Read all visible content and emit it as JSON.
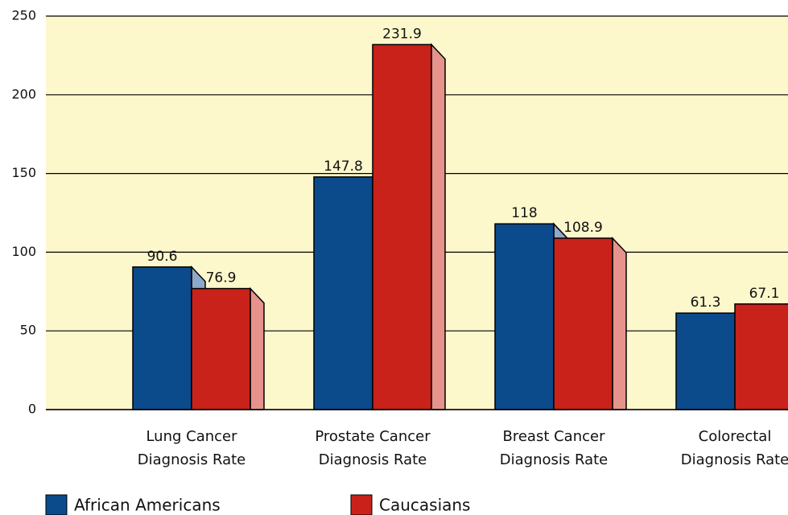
{
  "chart_data": {
    "type": "bar",
    "categories": [
      [
        "Lung Cancer",
        "Diagnosis Rate"
      ],
      [
        "Prostate Cancer",
        "Diagnosis Rate"
      ],
      [
        "Breast Cancer",
        "Diagnosis Rate"
      ],
      [
        "Colorectal",
        "Diagnosis Rate"
      ]
    ],
    "series": [
      {
        "name": "African Americans",
        "color": "#0b4a8b",
        "side_color": "#8ea8cb",
        "values": [
          90.6,
          147.8,
          118,
          61.3
        ]
      },
      {
        "name": "Caucasians",
        "color": "#c8221a",
        "side_color": "#e6938c",
        "values": [
          76.9,
          231.9,
          108.9,
          67.1
        ]
      }
    ],
    "ylim": [
      0,
      250
    ],
    "yticks": [
      0,
      50,
      100,
      150,
      200,
      250
    ],
    "grid": true,
    "background": "#fdf7cc"
  }
}
